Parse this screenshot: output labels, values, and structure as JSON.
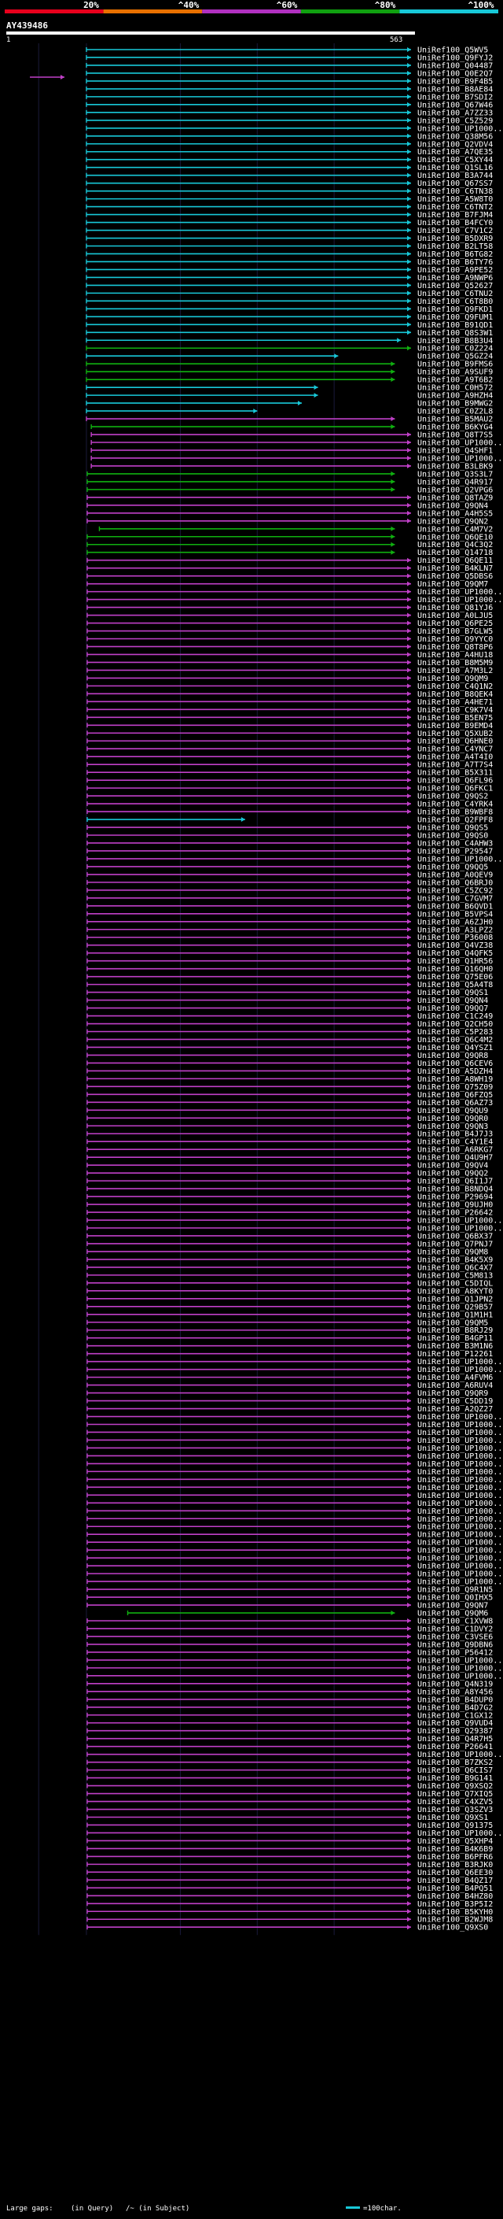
{
  "chart_data": {
    "type": "alignment-map",
    "title": "AY439486",
    "query_start": "1",
    "query_end": "563",
    "ticks": [
      20,
      40,
      60,
      80,
      100
    ],
    "tick_labels": [
      "20%",
      "^40%",
      "^60%",
      "^80%",
      "^100%"
    ],
    "identity_colors": [
      "#e8001c",
      "#e87000",
      "#b030c0",
      "#10a010",
      "#18c8d8"
    ],
    "hit_colors": {
      "cyan": "#18c8d8",
      "green": "#10b010",
      "magenta": "#c040c8"
    },
    "legend": {
      "gaps_text": "Large gaps:",
      "in_query": "(in Query)",
      "in_subject": "/~ (in Subject)",
      "scale_text": "=100char."
    },
    "hit_groups": [
      {
        "color": "cyan",
        "start": 0.198,
        "end": 1.0,
        "ids": [
          "Q5WV5",
          "Q9FYJ2",
          "Q04487",
          "Q0E2Q7",
          "B9F4B5",
          "B8AE84",
          "B7SDI2",
          "Q67W46",
          "A7ZZ33",
          "C5Z529",
          "UP1000..",
          "Q38M56",
          "Q2VDV4",
          "A7QE35",
          "C5XY44",
          "Q1SL16",
          "B3A744",
          "Q67SS7",
          "C6TN38",
          "A5W8T0",
          "C6TNT2",
          "B7FJM4",
          "B4FCY0",
          "C7V1C2",
          "B5DXR9",
          "B2LT58",
          "B6TG82",
          "B6TY76",
          "A9PE52",
          "A9NWP6",
          "Q52627",
          "C6TNU2",
          "C6T8B0",
          "Q9FKD1",
          "Q9FUM1",
          "B91QD1",
          "Q8S3W1"
        ]
      },
      {
        "color": "cyan",
        "start": 0.198,
        "end": 0.975,
        "ids": [
          "B8B3U4"
        ]
      },
      {
        "color": "green",
        "start": 0.198,
        "end": 1.0,
        "ids": [
          "C0Z224"
        ]
      },
      {
        "color": "cyan",
        "start": 0.198,
        "end": 0.82,
        "ids": [
          "Q5GZ24"
        ]
      },
      {
        "color": "green",
        "start": 0.198,
        "end": 0.96,
        "ids": [
          "B9FMS6",
          "A9SUF9",
          "A9T6B2"
        ]
      },
      {
        "color": "cyan",
        "start": 0.198,
        "end": 0.77,
        "ids": [
          "C0H572",
          "A9HZH4"
        ]
      },
      {
        "color": "cyan",
        "start": 0.198,
        "end": 0.73,
        "ids": [
          "B9MWG2"
        ]
      },
      {
        "color": "cyan",
        "start": 0.198,
        "end": 0.62,
        "ids": [
          "C0Z2L8"
        ]
      },
      {
        "color": "magenta",
        "start": 0.198,
        "end": 0.96,
        "ids": [
          "B5MAU2"
        ]
      },
      {
        "color": "green",
        "start": 0.21,
        "end": 0.96,
        "ids": [
          "B6KYG4"
        ]
      },
      {
        "color": "magenta",
        "start": 0.21,
        "end": 1.0,
        "ids": [
          "Q8T7S5",
          "UP1000..",
          "Q4SHF1",
          "UP1000..",
          "B3LBK9"
        ]
      },
      {
        "color": "green",
        "start": 0.2,
        "end": 0.96,
        "ids": [
          "Q3S3L7",
          "Q4R917",
          "Q2VPG6"
        ]
      },
      {
        "color": "magenta",
        "start": 0.2,
        "end": 1.0,
        "ids": [
          "Q8TAZ9",
          "Q9QN4",
          "A4H5S5",
          "Q9QN2"
        ]
      },
      {
        "color": "green",
        "start": 0.23,
        "end": 0.96,
        "ids": [
          "C4M7V2"
        ]
      },
      {
        "color": "green",
        "start": 0.2,
        "end": 0.96,
        "ids": [
          "Q6QE10",
          "Q4C3Q2",
          "Q14718"
        ]
      },
      {
        "color": "magenta",
        "start": 0.2,
        "end": 1.0,
        "ids": [
          "Q6QE11",
          "B4KLN7",
          "Q5DBS6",
          "Q9QM7",
          "UP1000..",
          "UP1000..",
          "Q81YJ6",
          "A0LJU5",
          "Q6PE25",
          "B7GLW5",
          "Q9YYC0",
          "Q8T8P6",
          "A4HU18",
          "B8M5M9",
          "A7M3L2",
          "Q9QM9",
          "C4Q1N2",
          "B8QEK4",
          "A4HE71",
          "C9K7V4",
          "B5EN75",
          "B9EMD4",
          "Q5XUB2",
          "Q6HNE0",
          "C4YNC7",
          "A4T4I0",
          "A7T7S4",
          "B5X311",
          "Q6FL96",
          "Q6FKC1",
          "Q9QS2",
          "C4YRK4",
          "B9WBF8"
        ]
      },
      {
        "color": "cyan",
        "start": 0.2,
        "end": 0.59,
        "ids": [
          "Q2FPF8"
        ]
      },
      {
        "color": "magenta",
        "start": 0.2,
        "end": 1.0,
        "ids": [
          "Q9QS5",
          "Q9QS0",
          "C4AHW3",
          "P29547",
          "UP1000..",
          "Q9QQ5",
          "A0QEV9",
          "Q6BRJ0",
          "C5ZC92",
          "C7GVM7",
          "B6QVD1",
          "B5VPS4",
          "A6ZJH0",
          "A3LPZ2",
          "P36008",
          "Q4VZ38",
          "Q4QFK5",
          "Q1HR56",
          "Q16QH0",
          "Q75E06",
          "Q5A4T8",
          "Q9QS1",
          "Q9QN4",
          "Q9QQ7",
          "C1C249",
          "Q2CH50",
          "C5P283",
          "Q6C4M2",
          "Q4YSZ1",
          "Q9QR8",
          "Q6CEV6",
          "A5DZH4",
          "A8WH19",
          "Q75Z09",
          "Q6FZQ5",
          "Q6AZ73",
          "Q9QU9",
          "Q9QR0",
          "Q9QN3",
          "B4J7J3",
          "C4Y1E4",
          "A6RKG7",
          "Q4U9H7",
          "Q9QV4",
          "Q9QQ2",
          "Q6I1J7",
          "B8NDQ4",
          "P29694",
          "Q9UJH0",
          "P26642",
          "UP1000..",
          "UP1000..",
          "Q6BX37",
          "Q7PNJ7",
          "Q9QM8",
          "B4K5X9",
          "Q6C4X7",
          "C5M813",
          "C5DIQL",
          "A8KYT0",
          "Q1JPN2",
          "Q29B57",
          "Q1M1H1",
          "Q9QM5",
          "B8RJ29",
          "B4GP11",
          "B3M1N6",
          "P12261",
          "UP1000..",
          "UP1000..",
          "A4FVM6",
          "A6RUV4",
          "Q9QR9",
          "C5DD19",
          "A2QZ27",
          "UP1000..",
          "UP1000..",
          "UP1000..",
          "UP1000..",
          "UP1000..",
          "UP1000..",
          "UP1000..",
          "UP1000..",
          "UP1000..",
          "UP1000..",
          "UP1000..",
          "UP1000..",
          "UP1000..",
          "UP1000..",
          "UP1000..",
          "UP1000..",
          "UP1000..",
          "UP1000..",
          "UP1000..",
          "UP1000..",
          "UP1000..",
          "UP1000..",
          "Q9R1N5",
          "Q0IHX5",
          "Q9QN7"
        ]
      },
      {
        "color": "green",
        "start": 0.3,
        "end": 0.96,
        "ids": [
          "Q9QM6"
        ]
      },
      {
        "color": "magenta",
        "start": 0.2,
        "end": 1.0,
        "ids": [
          "C1XVW8",
          "C1DVY2",
          "C3VSE6",
          "Q9DBN6",
          "P56412",
          "UP1000..",
          "UP1000..",
          "UP1000..",
          "Q4N319",
          "A8Y456",
          "B4DUP0",
          "B4D7G2",
          "C1GX12",
          "Q9VUD4",
          "Q29387",
          "Q4R7H5",
          "P26641",
          "UP1000..",
          "B7ZKS2",
          "Q6CIS7",
          "B9G141",
          "Q9XSQ2",
          "Q7XIQ5",
          "C4XZV5",
          "Q3SZV3",
          "Q9XS1",
          "Q91375",
          "UP1000..",
          "Q5XHP4",
          "B4K6B9",
          "B6PFR6",
          "B3RJK0",
          "Q6EE30",
          "B4QZ17",
          "B4PQ51",
          "B4HZ80",
          "B3P5I2",
          "B5KYH0",
          "B2WJM8",
          "Q9XS0"
        ]
      }
    ]
  }
}
